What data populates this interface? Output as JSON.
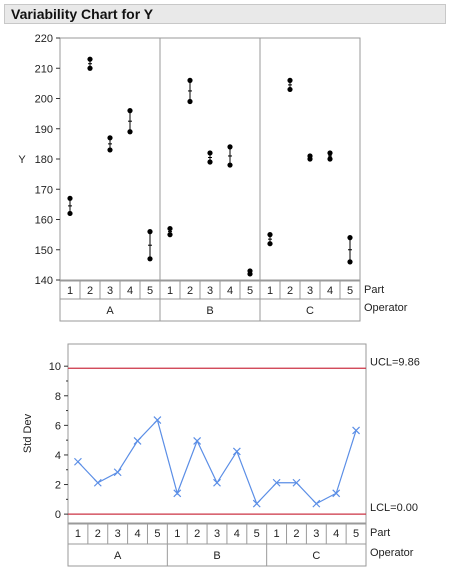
{
  "header": {
    "title": "Variability Chart for Y"
  },
  "legend_labels": {
    "part": "Part",
    "operator": "Operator"
  },
  "colors": {
    "grid": "#9a9a9a",
    "control_limit": "#cc3344",
    "series": "#5b8ee6",
    "points": "#000000"
  },
  "chart_data": [
    {
      "type": "variability",
      "ylabel": "Y",
      "ylim": [
        140,
        220
      ],
      "yticks": [
        140,
        150,
        160,
        170,
        180,
        190,
        200,
        210,
        220
      ],
      "operators": [
        "A",
        "B",
        "C"
      ],
      "parts": [
        "1",
        "2",
        "3",
        "4",
        "5"
      ],
      "groups": [
        {
          "operator": "A",
          "part": "1",
          "values": [
            167,
            162
          ]
        },
        {
          "operator": "A",
          "part": "2",
          "values": [
            213,
            210
          ]
        },
        {
          "operator": "A",
          "part": "3",
          "values": [
            187,
            183
          ]
        },
        {
          "operator": "A",
          "part": "4",
          "values": [
            196,
            189
          ]
        },
        {
          "operator": "A",
          "part": "5",
          "values": [
            156,
            147
          ]
        },
        {
          "operator": "B",
          "part": "1",
          "values": [
            157,
            155
          ]
        },
        {
          "operator": "B",
          "part": "2",
          "values": [
            206,
            199
          ]
        },
        {
          "operator": "B",
          "part": "3",
          "values": [
            182,
            179
          ]
        },
        {
          "operator": "B",
          "part": "4",
          "values": [
            184,
            178
          ]
        },
        {
          "operator": "B",
          "part": "5",
          "values": [
            143,
            142
          ]
        },
        {
          "operator": "C",
          "part": "1",
          "values": [
            155,
            152
          ]
        },
        {
          "operator": "C",
          "part": "2",
          "values": [
            206,
            203
          ]
        },
        {
          "operator": "C",
          "part": "3",
          "values": [
            181,
            180
          ]
        },
        {
          "operator": "C",
          "part": "4",
          "values": [
            182,
            180
          ]
        },
        {
          "operator": "C",
          "part": "5",
          "values": [
            154,
            146
          ]
        }
      ]
    },
    {
      "type": "line",
      "ylabel": "Std Dev",
      "ylim": [
        -0.6,
        11.5
      ],
      "yticks": [
        0,
        2,
        4,
        6,
        8,
        10
      ],
      "operators": [
        "A",
        "B",
        "C"
      ],
      "parts": [
        "1",
        "2",
        "3",
        "4",
        "5"
      ],
      "series": [
        {
          "values": [
            3.54,
            2.12,
            2.83,
            4.95,
            6.36,
            1.41,
            4.95,
            2.12,
            4.24,
            0.71,
            2.12,
            2.12,
            0.71,
            1.41,
            5.66
          ]
        }
      ],
      "ucl": 9.86,
      "lcl": 0.0,
      "ucl_label": "UCL=9.86",
      "lcl_label": "LCL=0.00"
    }
  ]
}
